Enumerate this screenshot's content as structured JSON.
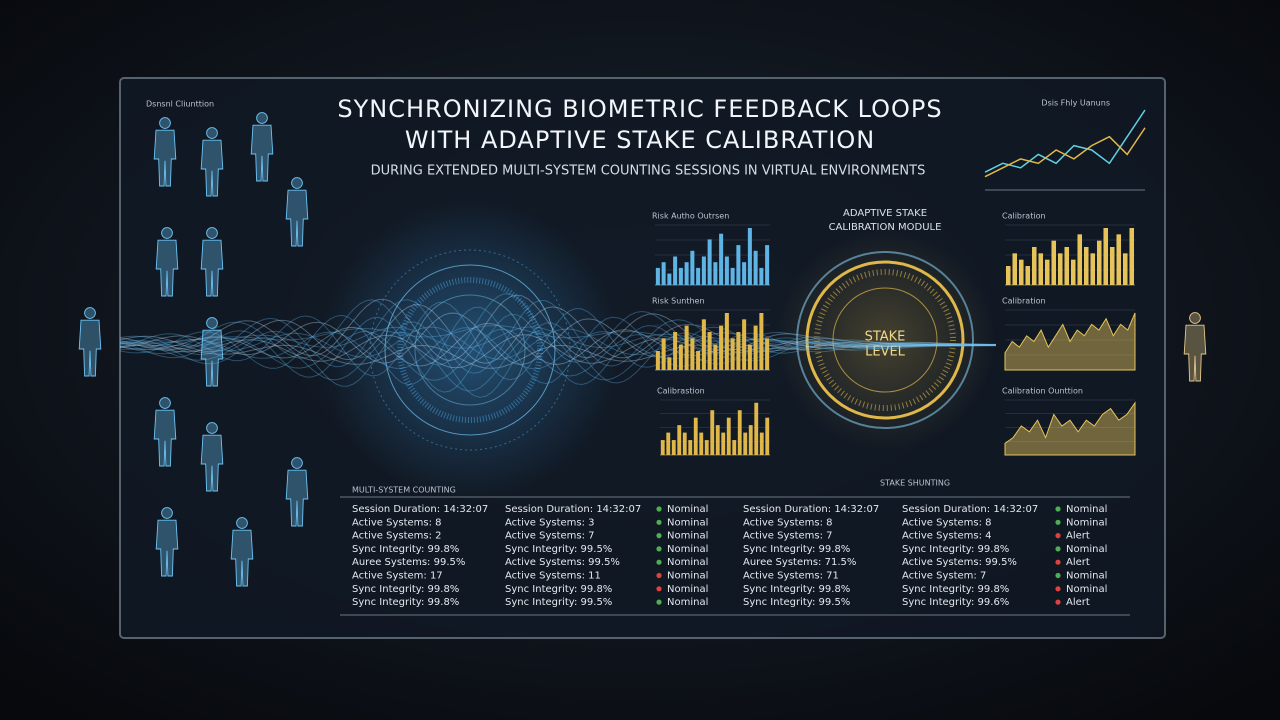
{
  "header": {
    "title_line1": "SYNCHRONIZING BIOMETRIC FEEDBACK LOOPS",
    "title_line2": "WITH ADAPTIVE STAKE CALIBRATION",
    "subtitle": "DURING EXTENDED MULTI-SYSTEM COUNTING SESSIONS IN VIRTUAL ENVIRONMENTS"
  },
  "left_label": "Dsnsnl Cliunttion",
  "module": {
    "title_line1": "ADAPTIVE STAKE",
    "title_line2": "CALIBRATION MODULE",
    "center_line1": "STAKE",
    "center_line2": "LEVEL"
  },
  "mini_charts": [
    {
      "label": "Risk Autho Outrsen",
      "type": "bar",
      "color": "#5fb4e6",
      "values": [
        3,
        4,
        2,
        5,
        3,
        4,
        6,
        3,
        5,
        8,
        4,
        9,
        5,
        3,
        7,
        4,
        10,
        6,
        3,
        7
      ]
    },
    {
      "label": "Risk Sunthen",
      "type": "bar",
      "color": "#e0b84a",
      "values": [
        3,
        5,
        2,
        6,
        4,
        7,
        5,
        3,
        8,
        6,
        4,
        7,
        9,
        5,
        6,
        8,
        4,
        7,
        9,
        5
      ]
    },
    {
      "label": "Calibrastion",
      "type": "bar",
      "color": "#e0b84a",
      "values": [
        2,
        3,
        2,
        4,
        3,
        2,
        5,
        3,
        2,
        6,
        4,
        3,
        5,
        2,
        6,
        3,
        4,
        7,
        3,
        5
      ]
    },
    {
      "label": "Calibration",
      "type": "bar",
      "color": "#e6c45a",
      "values": [
        3,
        5,
        4,
        3,
        6,
        5,
        4,
        7,
        5,
        6,
        4,
        8,
        6,
        5,
        7,
        9,
        6,
        8,
        5,
        9
      ]
    },
    {
      "label": "Calibration",
      "type": "area",
      "color": "#e6c45a",
      "values": [
        3,
        5,
        4,
        6,
        5,
        7,
        4,
        6,
        8,
        5,
        7,
        6,
        8,
        7,
        9,
        6,
        8,
        7,
        10
      ]
    },
    {
      "label": "Calibration Ounttion",
      "type": "area",
      "color": "#e6c45a",
      "values": [
        2,
        3,
        5,
        4,
        6,
        3,
        7,
        5,
        6,
        4,
        6,
        5,
        7,
        8,
        6,
        7,
        9
      ]
    }
  ],
  "line_chart": {
    "label": "Dsis Fhly Uanuns",
    "series": [
      {
        "color": "#5fd0e0",
        "values": [
          2,
          3,
          2.5,
          4,
          3,
          5,
          4.5,
          3,
          6,
          9
        ]
      },
      {
        "color": "#e0b84a",
        "values": [
          1.5,
          2.5,
          3.5,
          3,
          4.5,
          3.5,
          5,
          6,
          4,
          7
        ]
      }
    ]
  },
  "table": {
    "left_title": "MULTI-SYSTEM COUNTING",
    "right_title": "STAKE SHUNTING",
    "rows": [
      [
        "Session Duration: 14:32:07",
        "Session Duration: 14:32:07",
        {
          "label": "Nominal",
          "dot": "#4caf50"
        },
        "Session Duration: 14:32:07",
        "Session Duration: 14:32:07",
        {
          "label": "Nominal",
          "dot": "#4caf50"
        }
      ],
      [
        "Active Systems: 8",
        "Active Systems: 3",
        {
          "label": "Nominal",
          "dot": "#4caf50"
        },
        "Active Systems: 8",
        "Active Systems: 8",
        {
          "label": "Nominal",
          "dot": "#4caf50"
        }
      ],
      [
        "Active Systems: 2",
        "Active Systems: 7",
        {
          "label": "Nominal",
          "dot": "#4caf50"
        },
        "Active Systems: 7",
        "Active Systems: 4",
        {
          "label": "Alert",
          "dot": "#e04040"
        }
      ],
      [
        "Sync Integrity: 99.8%",
        "Sync Integrity: 99.5%",
        {
          "label": "Nominal",
          "dot": "#4caf50"
        },
        "Sync Integrity: 99.8%",
        "Sync Integrity: 99.8%",
        {
          "label": "Nominal",
          "dot": "#4caf50"
        }
      ],
      [
        "Auree Systems: 99.5%",
        "Active Systems: 99.5%",
        {
          "label": "Nominal",
          "dot": "#4caf50"
        },
        "Auree Systems: 71.5%",
        "Active Systems: 99.5%",
        {
          "label": "Alert",
          "dot": "#e04040"
        }
      ],
      [
        "Active System: 17",
        "Active Systems: 11",
        {
          "label": "Nominal",
          "dot": "#e04040"
        },
        "Active Systems: 71",
        "Active System: 7",
        {
          "label": "Nominal",
          "dot": "#4caf50"
        }
      ],
      [
        "Sync Integrity: 99.8%",
        "Sync Integrity: 99.8%",
        {
          "label": "Nominal",
          "dot": "#e04040"
        },
        "Sync Integrity: 99.8%",
        "Sync Integrity: 99.8%",
        {
          "label": "Nominal",
          "dot": "#e04040"
        }
      ],
      [
        "Sync Integrity: 99.8%",
        "Sync Integrity: 99.5%",
        {
          "label": "Nominal",
          "dot": "#4caf50"
        },
        "Sync Integrity: 99.5%",
        "Sync Integrity: 99.6%",
        {
          "label": "Alert",
          "dot": "#e04040"
        }
      ]
    ]
  }
}
